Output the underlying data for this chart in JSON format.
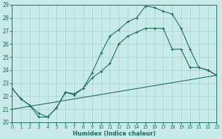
{
  "xlabel": "Humidex (Indice chaleur)",
  "bg_color": "#c8ebe8",
  "grid_color": "#aad4d0",
  "line_color": "#1a6b5a",
  "xlim": [
    0,
    23
  ],
  "ylim": [
    20,
    29
  ],
  "xticks": [
    0,
    1,
    2,
    3,
    4,
    5,
    6,
    7,
    8,
    9,
    10,
    11,
    12,
    13,
    14,
    15,
    16,
    17,
    18,
    19,
    20,
    21,
    22,
    23
  ],
  "yticks": [
    20,
    21,
    22,
    23,
    24,
    25,
    26,
    27,
    28,
    29
  ],
  "curve1_x": [
    0,
    1,
    2,
    3,
    4,
    5,
    6,
    7,
    8,
    9,
    10,
    11,
    12,
    13,
    14,
    15,
    16,
    17,
    18,
    19,
    20,
    21,
    22,
    23
  ],
  "curve1_y": [
    22.6,
    21.8,
    21.3,
    20.4,
    20.4,
    21.1,
    22.3,
    22.1,
    22.6,
    23.8,
    25.3,
    26.6,
    27.1,
    27.7,
    28.0,
    28.9,
    28.8,
    28.5,
    28.3,
    27.2,
    25.6,
    24.2,
    24.0,
    23.6
  ],
  "curve2_x": [
    0,
    1,
    2,
    3,
    4,
    5,
    6,
    7,
    8,
    9,
    10,
    11,
    12,
    13,
    14,
    15,
    16,
    17,
    18,
    19,
    20,
    21,
    22,
    23
  ],
  "curve2_y": [
    22.6,
    21.8,
    21.3,
    20.7,
    20.4,
    21.1,
    22.3,
    22.2,
    22.6,
    23.4,
    23.9,
    24.5,
    26.0,
    26.6,
    26.9,
    27.2,
    27.2,
    27.2,
    25.6,
    25.6,
    24.2,
    24.2,
    24.0,
    23.6
  ],
  "curve3_x": [
    0,
    23
  ],
  "curve3_y": [
    21.0,
    23.6
  ]
}
